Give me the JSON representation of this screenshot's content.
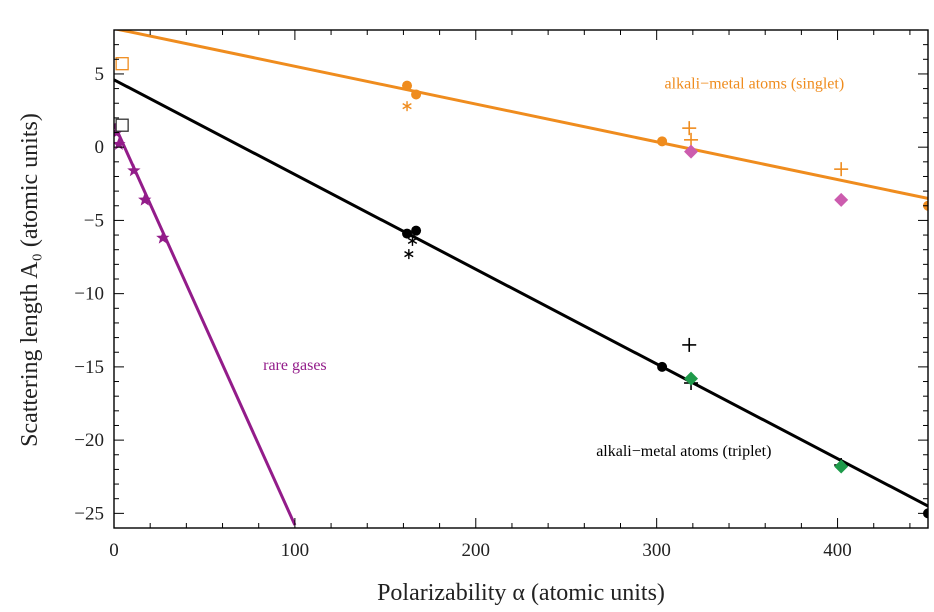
{
  "chart_data": {
    "type": "scatter",
    "title": "",
    "xlabel": "Polarizability α (atomic units)",
    "ylabel": "Scattering length A₀ (atomic units)",
    "xlim": [
      0,
      450
    ],
    "ylim": [
      -26,
      8
    ],
    "grid": false,
    "x_ticks": [
      0,
      100,
      200,
      300,
      400
    ],
    "y_ticks": [
      5,
      0,
      -5,
      -10,
      -15,
      -20,
      -25
    ],
    "x_tick_labels": [
      "0",
      "100",
      "200",
      "300",
      "400"
    ],
    "y_tick_labels": [
      "5",
      "0",
      "−5",
      "−10",
      "−15",
      "−20",
      "−25"
    ],
    "colors": {
      "singlet": "#ef8c1e",
      "triplet": "#000000",
      "rare": "#931c8a",
      "diamond_singlet": "#cc5cae",
      "diamond_triplet": "#1e9a4a",
      "square_orange": "#ef8c1e",
      "square_black": "#333333"
    },
    "fit_lines": [
      {
        "name": "singlet",
        "color": "#ef8c1e",
        "x": [
          0,
          450
        ],
        "y": [
          8.1,
          -3.5
        ]
      },
      {
        "name": "triplet",
        "color": "#000000",
        "x": [
          0,
          450
        ],
        "y": [
          4.6,
          -24.5
        ]
      },
      {
        "name": "rare",
        "color": "#931c8a",
        "x": [
          0,
          100
        ],
        "y": [
          1.6,
          -25.8
        ]
      }
    ],
    "series": [
      {
        "marker": "circle",
        "color": "#ef8c1e",
        "x": [
          162,
          167,
          303,
          450
        ],
        "y": [
          4.2,
          3.6,
          0.4,
          -4.0
        ]
      },
      {
        "marker": "circle",
        "color": "#000000",
        "x": [
          162,
          167,
          303,
          450
        ],
        "y": [
          -5.9,
          -5.7,
          -15.0,
          -25.0
        ]
      },
      {
        "marker": "asterisk",
        "color": "#ef8c1e",
        "x": [
          162
        ],
        "y": [
          2.8
        ]
      },
      {
        "marker": "asterisk",
        "color": "#000000",
        "x": [
          165,
          163
        ],
        "y": [
          -6.4,
          -7.3
        ]
      },
      {
        "marker": "plus",
        "color": "#ef8c1e",
        "x": [
          318,
          319,
          402
        ],
        "y": [
          1.3,
          0.5,
          -1.5
        ]
      },
      {
        "marker": "plus",
        "color": "#000000",
        "x": [
          318,
          319,
          402
        ],
        "y": [
          -13.5,
          -16.1,
          -21.7
        ]
      },
      {
        "marker": "diamond",
        "color": "#cc5cae",
        "x": [
          319,
          402
        ],
        "y": [
          -0.3,
          -3.6
        ]
      },
      {
        "marker": "diamond",
        "color": "#1e9a4a",
        "x": [
          319,
          402
        ],
        "y": [
          -15.8,
          -21.8
        ]
      },
      {
        "marker": "star",
        "color": "#931c8a",
        "x": [
          1.4,
          2.7,
          11,
          17,
          27
        ],
        "y": [
          1.0,
          0.2,
          -1.6,
          -3.6,
          -6.2
        ]
      },
      {
        "marker": "square",
        "color": "#ef8c1e",
        "x": [
          4.5
        ],
        "y": [
          5.7
        ]
      },
      {
        "marker": "square",
        "color": "#333333",
        "x": [
          4.5
        ],
        "y": [
          1.5
        ]
      }
    ],
    "annotations": [
      {
        "text": "alkali−metal atoms (singlet)",
        "color": "#ef8c1e",
        "x": 354,
        "y": 4.0
      },
      {
        "text": "rare gases",
        "color": "#931c8a",
        "x": 100,
        "y": -15.2
      },
      {
        "text": "alkali−metal atoms (triplet)",
        "color": "#000000",
        "x": 315,
        "y": -21.1
      }
    ]
  }
}
